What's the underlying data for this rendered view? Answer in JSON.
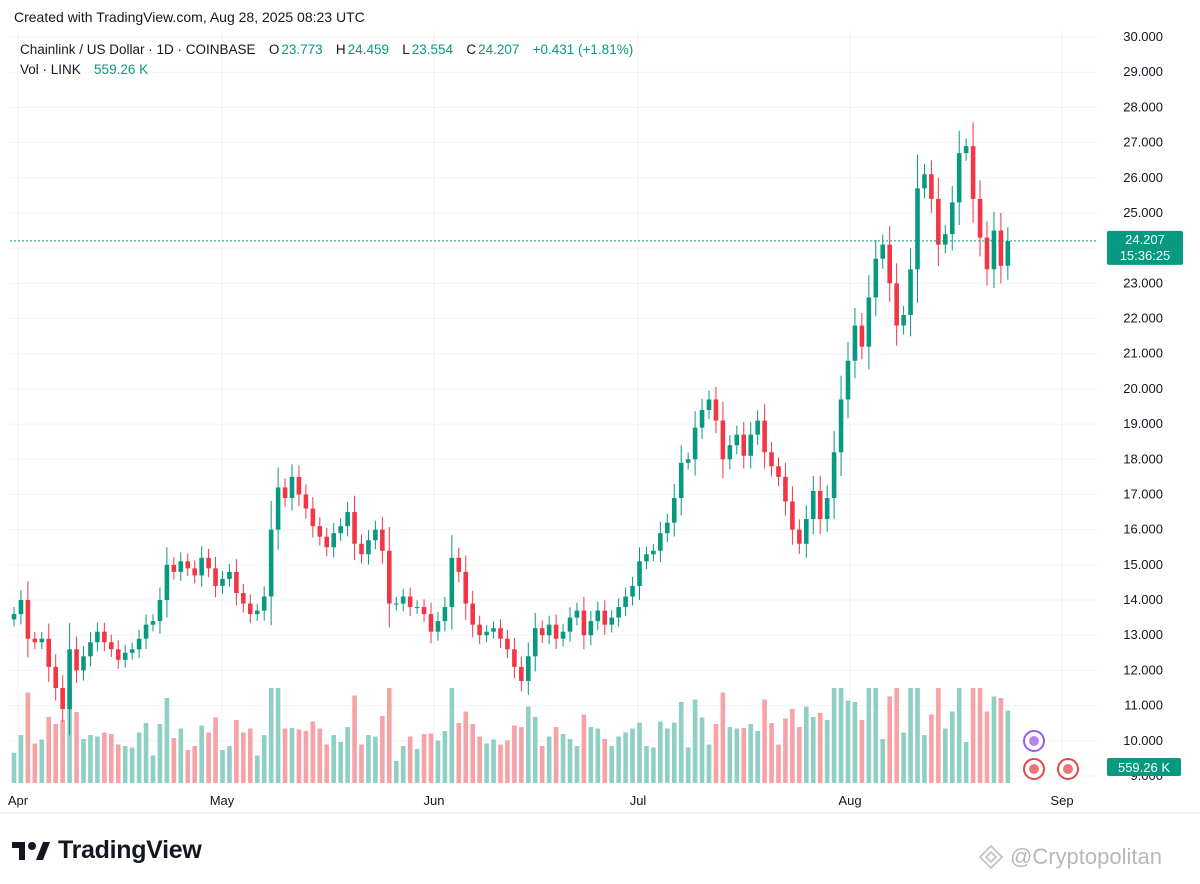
{
  "header": {
    "created_text": "Created with TradingView.com, Aug 28, 2025 08:23 UTC"
  },
  "legend": {
    "symbol": "Chainlink / US Dollar · 1D · COINBASE",
    "o_label": "O",
    "o_value": "23.773",
    "h_label": "H",
    "h_value": "24.459",
    "l_label": "L",
    "l_value": "23.554",
    "c_label": "C",
    "c_value": "24.207",
    "change": "+0.431 (+1.81%)",
    "vol_label": "Vol · LINK",
    "vol_value": "559.26 K"
  },
  "price_badge": {
    "price": "24.207",
    "countdown": "15:36:25"
  },
  "volume_badge": "559.26 K",
  "footer": {
    "brand": "TradingView",
    "watermark": "@Cryptopolitan"
  },
  "colors": {
    "up": "#089981",
    "down": "#f23645",
    "up_vol": "#8fcfc4",
    "down_vol": "#f5a3a6",
    "grid": "#f0f3fa"
  },
  "chart_data": {
    "type": "candlestick",
    "title": "Chainlink / US Dollar · 1D · COINBASE",
    "ylim": [
      8.8,
      30.2
    ],
    "y_ticks": [
      "30.000",
      "29.000",
      "28.000",
      "27.000",
      "26.000",
      "25.000",
      "24.000",
      "23.000",
      "22.000",
      "21.000",
      "20.000",
      "19.000",
      "18.000",
      "17.000",
      "16.000",
      "15.000",
      "14.000",
      "13.000",
      "12.000",
      "11.000",
      "10.000",
      "9.000"
    ],
    "x_ticks": [
      "Apr",
      "May",
      "Jun",
      "Jul",
      "Aug",
      "Sep"
    ],
    "last_close": 24.207,
    "price_series": [
      13.6,
      14.0,
      12.9,
      12.8,
      12.9,
      12.1,
      11.5,
      10.9,
      12.6,
      12.0,
      12.4,
      12.8,
      13.1,
      12.8,
      12.6,
      12.3,
      12.5,
      12.6,
      12.9,
      13.3,
      13.4,
      14.0,
      15.0,
      14.8,
      15.1,
      14.9,
      14.7,
      15.2,
      14.9,
      14.4,
      14.6,
      14.8,
      14.2,
      13.9,
      13.6,
      13.7,
      14.1,
      16.0,
      17.2,
      16.9,
      17.5,
      17.0,
      16.6,
      16.1,
      15.8,
      15.5,
      15.9,
      16.1,
      16.5,
      15.6,
      15.3,
      15.7,
      16.0,
      15.4,
      13.9,
      13.9,
      14.1,
      13.8,
      13.8,
      13.6,
      13.1,
      13.4,
      13.8,
      15.2,
      14.8,
      13.9,
      13.3,
      13.0,
      13.1,
      13.2,
      12.9,
      12.6,
      12.1,
      11.7,
      12.4,
      13.2,
      13.0,
      13.3,
      12.9,
      13.1,
      13.5,
      13.7,
      13.0,
      13.4,
      13.7,
      13.3,
      13.5,
      13.8,
      14.1,
      14.4,
      15.1,
      15.3,
      15.4,
      15.9,
      16.2,
      16.9,
      17.9,
      18.0,
      18.9,
      19.4,
      19.7,
      19.1,
      18.0,
      18.4,
      18.7,
      18.1,
      18.7,
      19.1,
      18.2,
      17.8,
      17.5,
      16.8,
      16.0,
      15.6,
      16.3,
      17.1,
      16.3,
      16.9,
      18.2,
      19.7,
      20.8,
      21.8,
      21.2,
      22.6,
      23.7,
      24.1,
      23.0,
      21.8,
      22.1,
      23.4,
      25.7,
      26.1,
      25.4,
      24.1,
      24.4,
      25.3,
      26.7,
      26.9,
      25.4,
      24.3,
      23.4,
      24.5,
      23.5,
      24.2
    ],
    "volume_series": [
      "dynamic"
    ]
  }
}
